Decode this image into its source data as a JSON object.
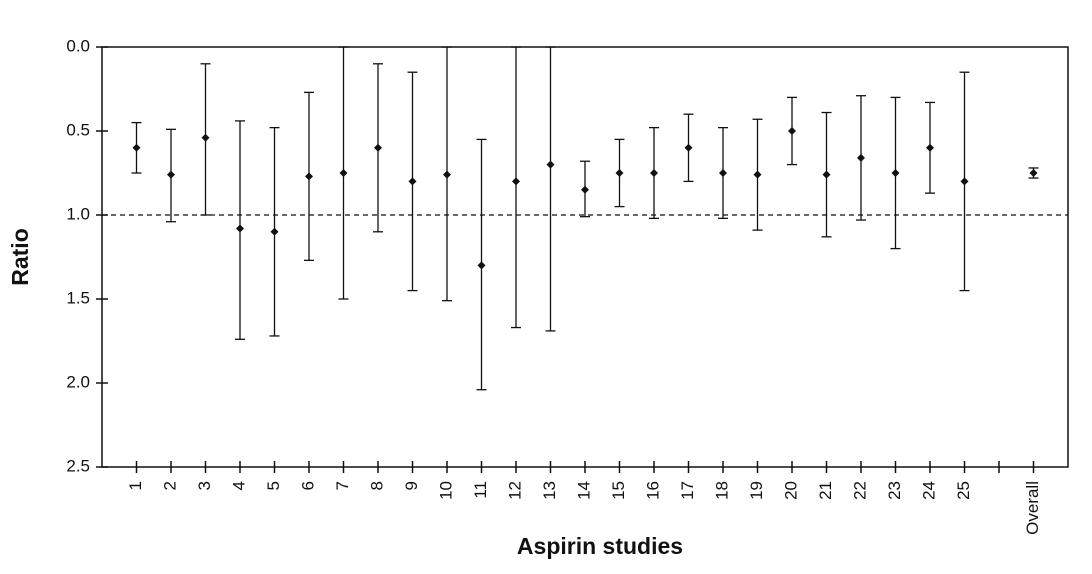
{
  "chart_data": {
    "type": "errorbar",
    "x_label": "Aspirin studies",
    "y_label": "Ratio",
    "categories": [
      "1",
      "2",
      "3",
      "4",
      "5",
      "6",
      "7",
      "8",
      "9",
      "10",
      "11",
      "12",
      "13",
      "14",
      "15",
      "16",
      "17",
      "18",
      "19",
      "20",
      "21",
      "22",
      "23",
      "24",
      "25",
      null,
      "Overall"
    ],
    "values": [
      0.6,
      0.76,
      0.54,
      1.08,
      1.1,
      0.77,
      0.75,
      0.6,
      0.8,
      0.76,
      1.3,
      0.8,
      0.7,
      0.85,
      0.75,
      0.75,
      0.6,
      0.75,
      0.76,
      0.5,
      0.76,
      0.66,
      0.75,
      0.6,
      0.8,
      null,
      0.75
    ],
    "low": [
      0.45,
      0.49,
      0.1,
      0.44,
      0.48,
      0.27,
      0,
      0.1,
      0.15,
      0,
      0.55,
      0,
      0,
      0.68,
      0.55,
      0.48,
      0.4,
      0.48,
      0.43,
      0.3,
      0.39,
      0.29,
      0.3,
      0.33,
      0.15,
      null,
      0.72
    ],
    "high": [
      0.75,
      1.04,
      1.0,
      1.74,
      1.72,
      1.27,
      1.5,
      1.1,
      1.45,
      1.51,
      2.04,
      1.67,
      1.69,
      1.01,
      0.95,
      1.02,
      0.8,
      1.02,
      1.09,
      0.7,
      1.13,
      1.03,
      1.2,
      0.87,
      1.45,
      null,
      0.78
    ],
    "color": "#111111",
    "ylim": [
      0,
      2.5
    ],
    "y_reversed": true,
    "yticks": [
      {
        "value": 0,
        "label": "0.0"
      },
      0.5,
      {
        "value": 1,
        "label": "1.0"
      },
      1.5,
      {
        "value": 2,
        "label": "2.0"
      },
      2.5
    ],
    "reference_line": 1
  }
}
